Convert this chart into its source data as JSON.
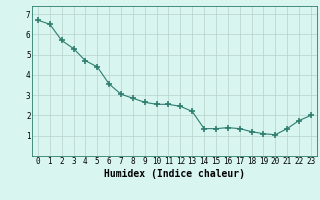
{
  "xlabel": "Humidex (Indice chaleur)",
  "ylabel": "",
  "x": [
    0,
    1,
    2,
    3,
    4,
    5,
    6,
    7,
    8,
    9,
    10,
    11,
    12,
    13,
    14,
    15,
    16,
    17,
    18,
    19,
    20,
    21,
    22,
    23
  ],
  "y": [
    6.7,
    6.5,
    5.7,
    5.3,
    4.7,
    4.4,
    3.55,
    3.05,
    2.85,
    2.65,
    2.55,
    2.55,
    2.45,
    2.2,
    1.35,
    1.35,
    1.4,
    1.35,
    1.2,
    1.1,
    1.05,
    1.35,
    1.75,
    2.0
  ],
  "line_color": "#2e7d6e",
  "marker": "+",
  "marker_size": 4,
  "marker_lw": 1.2,
  "bg_color": "#d8f5f0",
  "grid_color": "#b8d0cc",
  "ylim": [
    0,
    7.4
  ],
  "xlim": [
    -0.5,
    23.5
  ],
  "yticks": [
    1,
    2,
    3,
    4,
    5,
    6,
    7
  ],
  "xtick_labels": [
    "0",
    "1",
    "2",
    "3",
    "4",
    "5",
    "6",
    "7",
    "8",
    "9",
    "10",
    "11",
    "12",
    "13",
    "14",
    "15",
    "16",
    "17",
    "18",
    "19",
    "20",
    "21",
    "22",
    "23"
  ],
  "axis_fontsize": 6.5,
  "tick_fontsize": 5.5,
  "xlabel_fontsize": 7.0
}
